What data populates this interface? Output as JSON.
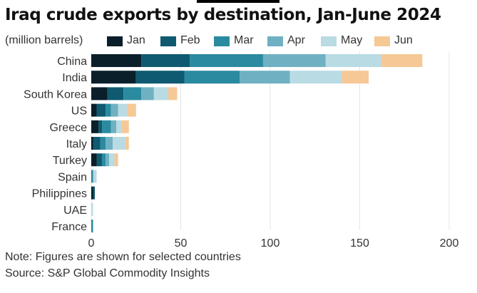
{
  "header": {
    "title": "Iraq crude exports by destination, Jan-June 2024",
    "unit_label": "(million barrels)"
  },
  "legend": {
    "items": [
      {
        "label": "Jan",
        "color": "#0b1f2a"
      },
      {
        "label": "Feb",
        "color": "#0f5a70"
      },
      {
        "label": "Mar",
        "color": "#2a8aa0"
      },
      {
        "label": "Apr",
        "color": "#6fb1c2"
      },
      {
        "label": "May",
        "color": "#b9dbe3"
      },
      {
        "label": "Jun",
        "color": "#f5c896"
      }
    ]
  },
  "chart_data": {
    "type": "bar",
    "orientation": "horizontal",
    "stacked": true,
    "categories": [
      "China",
      "India",
      "South Korea",
      "US",
      "Greece",
      "Italy",
      "Turkey",
      "Spain",
      "Philippines",
      "UAE",
      "France"
    ],
    "series": [
      {
        "name": "Jan",
        "values": [
          28,
          25,
          9,
          3,
          4,
          1,
          3,
          0,
          1,
          0,
          0
        ]
      },
      {
        "name": "Feb",
        "values": [
          27,
          27,
          9,
          5,
          2,
          4,
          3,
          0,
          1,
          0,
          0
        ]
      },
      {
        "name": "Mar",
        "values": [
          41,
          31,
          10,
          3,
          5,
          3,
          2,
          1,
          0,
          0,
          1
        ]
      },
      {
        "name": "Apr",
        "values": [
          35,
          28,
          7,
          4,
          3,
          4,
          2,
          0,
          0,
          0,
          0
        ]
      },
      {
        "name": "May",
        "values": [
          31,
          29,
          8,
          5,
          3,
          7,
          3,
          2,
          0,
          1,
          0
        ]
      },
      {
        "name": "Jun",
        "values": [
          23,
          15,
          5,
          5,
          4,
          2,
          2,
          0,
          0,
          0,
          0
        ]
      }
    ],
    "xlim": [
      0,
      200
    ],
    "xticks": [
      0,
      50,
      100,
      150,
      200
    ],
    "grid": true,
    "legend": "top"
  },
  "footer": {
    "note": "Note: Figures are shown for selected countries",
    "source": "Source: S&P Global Commodity Insights"
  }
}
